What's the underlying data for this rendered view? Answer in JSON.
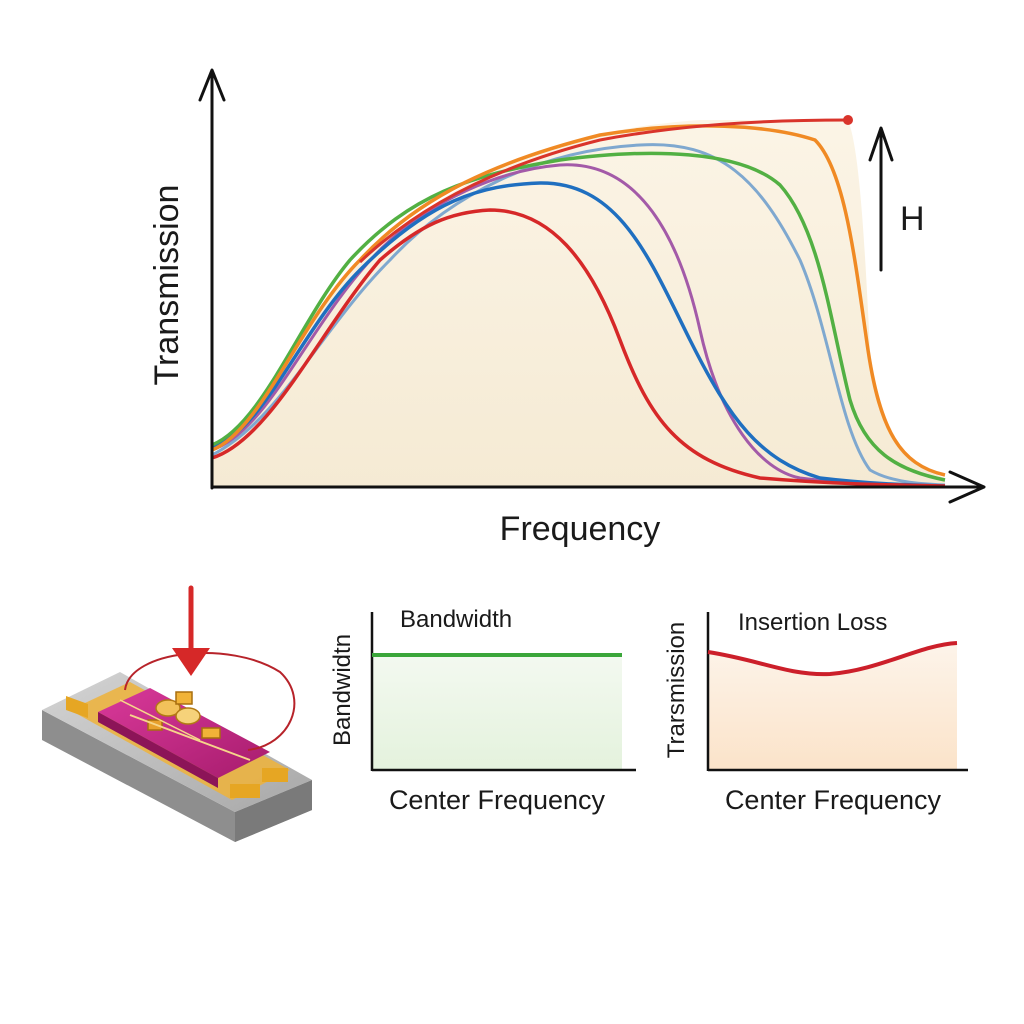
{
  "main_plot": {
    "xlabel": "Frequency",
    "ylabel": "Transmission",
    "arrow_label": "H",
    "fill_color": "#f6ecd9",
    "curves": [
      {
        "color": "#d62828",
        "name": "red"
      },
      {
        "color": "#1f6fc0",
        "name": "blue"
      },
      {
        "color": "#7fa8cf",
        "name": "light-blue"
      },
      {
        "color": "#52b043",
        "name": "green"
      },
      {
        "color": "#f08a24",
        "name": "orange"
      },
      {
        "color": "#a35aa8",
        "name": "purple"
      }
    ],
    "accent_marker_color": "#d9342b"
  },
  "device": {
    "arrow_color": "#d62828",
    "substrate_color": "#b5b5b5",
    "pad_color": "#e6a623",
    "chip_color": "#c2237f"
  },
  "bandwidth_plot": {
    "title": "Bandwidth",
    "ylabel": "Bandwidtn",
    "xlabel": "Center Frequency",
    "line_color": "#3aa63a"
  },
  "insertion_plot": {
    "title": "Insertion Loss",
    "ylabel": "Trarsmission",
    "xlabel": "Center Frequency",
    "line_color": "#cc1f2a"
  }
}
